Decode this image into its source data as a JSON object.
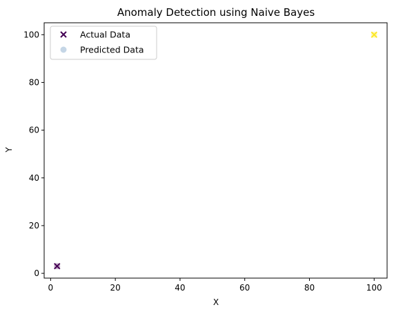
{
  "chart_data": {
    "type": "scatter",
    "title": "Anomaly Detection using Naive Bayes",
    "xlabel": "X",
    "ylabel": "Y",
    "xlim": [
      -2,
      104
    ],
    "ylim": [
      -2,
      105
    ],
    "xticks": [
      0,
      20,
      40,
      60,
      80,
      100
    ],
    "yticks": [
      0,
      20,
      40,
      60,
      80,
      100
    ],
    "grid": false,
    "legend_position": "top-left",
    "series": [
      {
        "name": "Actual Data",
        "marker": "x",
        "points": [
          {
            "x": 2,
            "y": 3,
            "color": "#440154"
          },
          {
            "x": 100,
            "y": 100,
            "color": "#fde725"
          }
        ]
      },
      {
        "name": "Predicted Data",
        "marker": "circle",
        "alpha": 0.3,
        "points": [
          {
            "x": 2,
            "y": 3,
            "color": "#440154"
          },
          {
            "x": 100,
            "y": 100,
            "color": "#fde725"
          }
        ]
      }
    ],
    "legend": [
      {
        "label": "Actual Data",
        "marker": "x",
        "color": "#440154"
      },
      {
        "label": "Predicted Data",
        "marker": "circle",
        "color": "#7fa3c8"
      }
    ]
  }
}
